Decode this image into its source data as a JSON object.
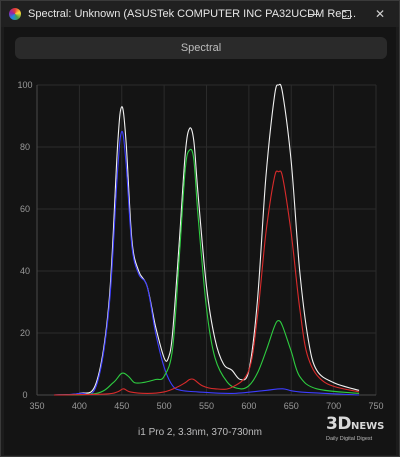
{
  "window": {
    "title": "Spectral: Unknown (ASUSTek COMPUTER INC PA32UCDM Rec...",
    "controls": {
      "minimize": "minimize",
      "maximize": "maximize",
      "close": "close"
    },
    "app_icon": "spectrum-icon"
  },
  "header": {
    "label": "Spectral"
  },
  "footer": {
    "caption": "i1 Pro 2, 3.3nm, 370-730nm"
  },
  "watermark": {
    "logo": "3D",
    "logo_suffix": "NEWS",
    "tagline": "Daily Digital Digest"
  },
  "chart_data": {
    "type": "line",
    "title": "",
    "xlabel": "",
    "ylabel": "",
    "xlim": [
      350,
      750
    ],
    "ylim": [
      0,
      100
    ],
    "x_ticks": [
      350,
      400,
      450,
      500,
      550,
      600,
      650,
      700,
      750
    ],
    "y_ticks": [
      0,
      20,
      40,
      60,
      80,
      100
    ],
    "grid": true,
    "series": [
      {
        "color": "#f2f2f2",
        "points": [
          [
            370,
            0
          ],
          [
            400,
            0.5
          ],
          [
            420,
            4
          ],
          [
            435,
            30
          ],
          [
            445,
            80
          ],
          [
            450,
            93
          ],
          [
            455,
            82
          ],
          [
            462,
            50
          ],
          [
            470,
            40
          ],
          [
            480,
            35
          ],
          [
            490,
            22
          ],
          [
            500,
            12
          ],
          [
            505,
            12
          ],
          [
            510,
            20
          ],
          [
            518,
            50
          ],
          [
            525,
            78
          ],
          [
            530,
            86
          ],
          [
            535,
            82
          ],
          [
            540,
            65
          ],
          [
            550,
            35
          ],
          [
            560,
            18
          ],
          [
            570,
            10
          ],
          [
            580,
            8
          ],
          [
            590,
            5
          ],
          [
            600,
            8
          ],
          [
            610,
            30
          ],
          [
            620,
            70
          ],
          [
            630,
            96
          ],
          [
            635,
            100
          ],
          [
            640,
            97
          ],
          [
            650,
            75
          ],
          [
            660,
            40
          ],
          [
            670,
            18
          ],
          [
            680,
            8
          ],
          [
            700,
            4
          ],
          [
            730,
            1.5
          ]
        ]
      },
      {
        "color": "#3d3dff",
        "points": [
          [
            370,
            0
          ],
          [
            400,
            0.5
          ],
          [
            420,
            3
          ],
          [
            435,
            28
          ],
          [
            445,
            72
          ],
          [
            450,
            85
          ],
          [
            455,
            75
          ],
          [
            462,
            48
          ],
          [
            470,
            39
          ],
          [
            480,
            35
          ],
          [
            490,
            20
          ],
          [
            500,
            9
          ],
          [
            510,
            3
          ],
          [
            520,
            1.5
          ],
          [
            540,
            1
          ],
          [
            580,
            0.5
          ],
          [
            620,
            1.5
          ],
          [
            640,
            2
          ],
          [
            660,
            1
          ],
          [
            730,
            0
          ]
        ]
      },
      {
        "color": "#2ecc40",
        "points": [
          [
            370,
            0
          ],
          [
            420,
            0.5
          ],
          [
            440,
            4
          ],
          [
            450,
            7
          ],
          [
            458,
            6
          ],
          [
            465,
            4
          ],
          [
            475,
            4
          ],
          [
            490,
            5
          ],
          [
            500,
            6
          ],
          [
            510,
            15
          ],
          [
            518,
            45
          ],
          [
            525,
            73
          ],
          [
            530,
            79
          ],
          [
            535,
            76
          ],
          [
            540,
            58
          ],
          [
            550,
            28
          ],
          [
            560,
            12
          ],
          [
            575,
            4
          ],
          [
            590,
            2
          ],
          [
            600,
            3
          ],
          [
            610,
            7
          ],
          [
            620,
            14
          ],
          [
            630,
            22
          ],
          [
            635,
            24
          ],
          [
            640,
            22
          ],
          [
            650,
            14
          ],
          [
            660,
            6
          ],
          [
            680,
            2
          ],
          [
            730,
            0.5
          ]
        ]
      },
      {
        "color": "#d92b2b",
        "points": [
          [
            370,
            0
          ],
          [
            430,
            0.3
          ],
          [
            445,
            1
          ],
          [
            452,
            2
          ],
          [
            460,
            1
          ],
          [
            480,
            0.5
          ],
          [
            500,
            1
          ],
          [
            515,
            2.5
          ],
          [
            525,
            4
          ],
          [
            530,
            5
          ],
          [
            535,
            5
          ],
          [
            545,
            3
          ],
          [
            560,
            2
          ],
          [
            580,
            2.5
          ],
          [
            600,
            8
          ],
          [
            610,
            25
          ],
          [
            620,
            52
          ],
          [
            630,
            70
          ],
          [
            635,
            72
          ],
          [
            640,
            70
          ],
          [
            650,
            52
          ],
          [
            660,
            28
          ],
          [
            670,
            12
          ],
          [
            690,
            4
          ],
          [
            730,
            1
          ]
        ]
      }
    ]
  }
}
